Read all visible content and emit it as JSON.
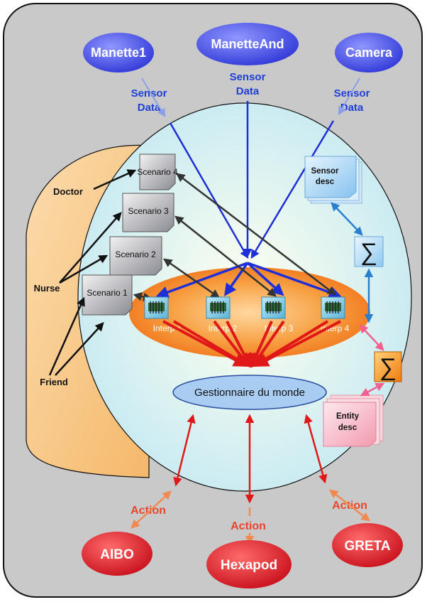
{
  "sensors": [
    {
      "id": "manette1",
      "label": "Manette1",
      "data_label_1": "Sensor",
      "data_label_2": "Data"
    },
    {
      "id": "manetteand",
      "label": "ManetteAnd",
      "data_label_1": "Sensor",
      "data_label_2": "Data"
    },
    {
      "id": "camera",
      "label": "Camera",
      "data_label_1": "Sensor",
      "data_label_2": "Data"
    }
  ],
  "users": [
    {
      "id": "doctor",
      "label": "Doctor"
    },
    {
      "id": "nurse",
      "label": "Nurse"
    },
    {
      "id": "friend",
      "label": "Friend"
    }
  ],
  "scenarios": [
    "Scenario 4",
    "Scenario 3",
    "Scenario 2",
    "Scenario 1"
  ],
  "interpreters": [
    "Interp 1",
    "Interp 2",
    "Interp 3",
    "Interp 4"
  ],
  "sensor_desc": {
    "line1": "Sensor",
    "line2": "desc"
  },
  "entity_desc": {
    "line1": "Entity",
    "line2": "desc"
  },
  "sigma_symbol": "∑",
  "world_manager": "Gestionnaire du monde",
  "actuators": [
    {
      "id": "aibo",
      "label": "AIBO",
      "action_label": "Action"
    },
    {
      "id": "hexapod",
      "label": "Hexapod",
      "action_label": "Action"
    },
    {
      "id": "greta",
      "label": "GRETA",
      "action_label": "Action"
    }
  ],
  "colors": {
    "frame": "#c8c8c8",
    "sensor_node": "#4a52e6",
    "sensor_arrow": "#1f2fd8",
    "inner_ellipse": "#d6f0f7",
    "user_panel": "#f7c98e",
    "interp_ring": "#f08a22",
    "action_arrow": "#e01818",
    "actuator_node": "#d8202a",
    "desc_blue": "#a8d4f2",
    "desc_pink": "#f8c0cc",
    "sigma_orange": "#f39a1e"
  }
}
